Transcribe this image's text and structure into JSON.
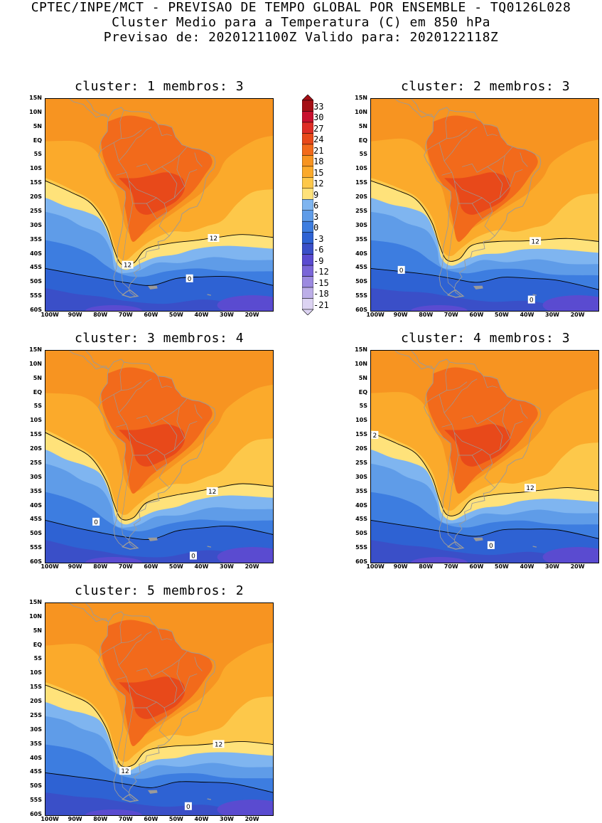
{
  "header": {
    "line1": "CPTEC/INPE/MCT - PREVISAO DE TEMPO GLOBAL POR ENSEMBLE - TQ0126L028",
    "line2": "Cluster Medio para a Temperatura (C) em 850 hPa",
    "line3": "Previsao de: 2020121100Z   Valido para: 2020122118Z"
  },
  "axes": {
    "lat_ticks": [
      "15N",
      "10N",
      "5N",
      "EQ",
      "5S",
      "10S",
      "15S",
      "20S",
      "25S",
      "30S",
      "35S",
      "40S",
      "45S",
      "50S",
      "55S",
      "60S"
    ],
    "lon_ticks": [
      "100W",
      "90W",
      "80W",
      "70W",
      "60W",
      "50W",
      "40W",
      "30W",
      "20W"
    ]
  },
  "colorbar": {
    "labels": [
      "33",
      "30",
      "27",
      "24",
      "21",
      "18",
      "15",
      "12",
      "9",
      "6",
      "3",
      "0",
      "-3",
      "-6",
      "-9",
      "-12",
      "-15",
      "-18",
      "-21"
    ],
    "colors": [
      "#a50f15",
      "#c8102e",
      "#de2d26",
      "#e8491a",
      "#f26a1b",
      "#f79421",
      "#fbaa2b",
      "#fdc84a",
      "#ffe27a",
      "#7fb5f0",
      "#5f9ce8",
      "#3d7de0",
      "#2e62d3",
      "#3a4fc8",
      "#5a4bd0",
      "#7a66d8",
      "#9c8ae0",
      "#bcaee8",
      "#dcd3f2"
    ]
  },
  "panels": [
    {
      "title": "cluster: 1   membros: 3",
      "contours": [
        "12",
        "12",
        "0"
      ]
    },
    {
      "title": "cluster: 2   membros: 3",
      "contours": [
        "12",
        "0",
        "0"
      ]
    },
    {
      "title": "cluster: 3   membros: 4",
      "contours": [
        "12",
        "0",
        "0"
      ]
    },
    {
      "title": "cluster: 4   membros: 3",
      "contours": [
        "2",
        "12",
        "0"
      ]
    },
    {
      "title": "cluster: 5   membros: 2",
      "contours": [
        "12",
        "12",
        "0"
      ]
    }
  ]
}
